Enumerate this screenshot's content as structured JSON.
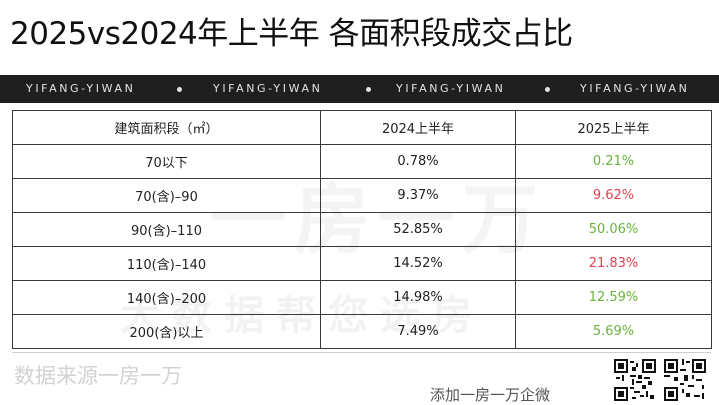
{
  "header": {
    "title": "2025vs2024年上半年 各面积段成交占比"
  },
  "banner": {
    "items": [
      "YIFANG-YIWAN",
      "YIFANG-YIWAN",
      "YIFANG-YIWAN",
      "YIFANG-YIWAN"
    ]
  },
  "table": {
    "headers": [
      "建筑面积段（㎡）",
      "2024上半年",
      "2025上半年"
    ],
    "rows": [
      {
        "segment": "70以下",
        "h1_2024": "0.78%",
        "h1_2025": "0.21%",
        "h1_2025_color": "#6ab23d"
      },
      {
        "segment": "70(含)–90",
        "h1_2024": "9.37%",
        "h1_2025": "9.62%",
        "h1_2025_color": "#e0424f"
      },
      {
        "segment": "90(含)–110",
        "h1_2024": "52.85%",
        "h1_2025": "50.06%",
        "h1_2025_color": "#6ab23d"
      },
      {
        "segment": "110(含)–140",
        "h1_2024": "14.52%",
        "h1_2025": "21.83%",
        "h1_2025_color": "#e0424f"
      },
      {
        "segment": "140(含)–200",
        "h1_2024": "14.98%",
        "h1_2025": "12.59%",
        "h1_2025_color": "#6ab23d"
      },
      {
        "segment": "200(含)以上",
        "h1_2024": "7.49%",
        "h1_2025": "5.69%",
        "h1_2025_color": "#6ab23d"
      }
    ]
  },
  "watermark": {
    "large": "一房一万",
    "small": "大数据帮您选房"
  },
  "footer": {
    "source": "数据来源一房一万",
    "follow": "添加一房一万企微"
  },
  "colors": {
    "increase": "#e0424f",
    "decrease": "#6ab23d",
    "banner_bg": "#1f1f1f"
  },
  "icons": [
    "qr-code-icon",
    "qr-code-icon"
  ]
}
